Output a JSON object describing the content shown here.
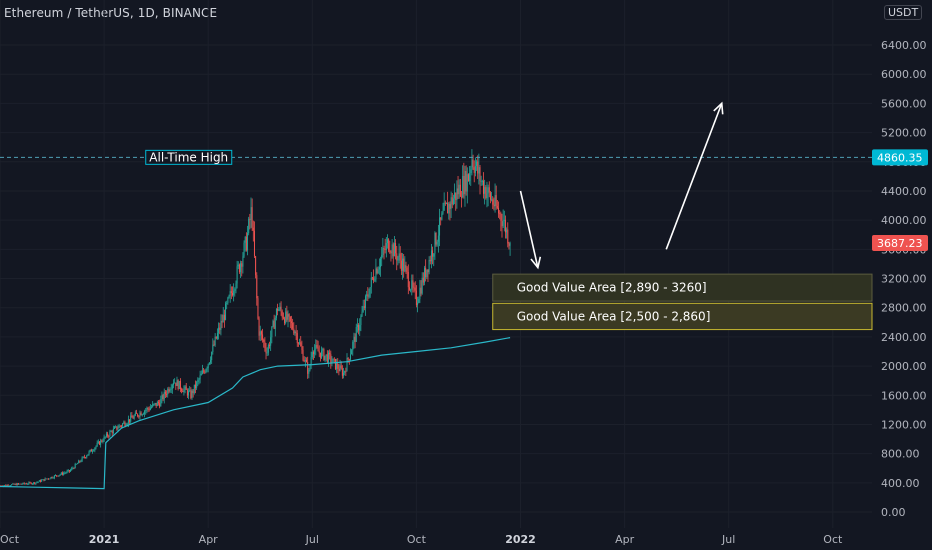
{
  "header": {
    "title": "Ethereum / TetherUS, 1D, BINANCE",
    "currency": "USDT"
  },
  "chart_data": {
    "type": "candlestick",
    "ylim": [
      0,
      6700
    ],
    "y_ticks": [
      {
        "value": 0,
        "label": "0.00"
      },
      {
        "value": 400,
        "label": "400.00"
      },
      {
        "value": 800,
        "label": "800.00"
      },
      {
        "value": 1200,
        "label": "1200.00"
      },
      {
        "value": 1600,
        "label": "1600.00"
      },
      {
        "value": 2000,
        "label": "2000.00"
      },
      {
        "value": 2400,
        "label": "2400.00"
      },
      {
        "value": 2800,
        "label": "2800.00"
      },
      {
        "value": 3200,
        "label": "3200.00"
      },
      {
        "value": 3600,
        "label": "3600.00"
      },
      {
        "value": 4000,
        "label": "4000.00"
      },
      {
        "value": 4400,
        "label": "4400.00"
      },
      {
        "value": 4800,
        "label": "4800.00"
      },
      {
        "value": 5200,
        "label": "5200.00"
      },
      {
        "value": 5600,
        "label": "5600.00"
      },
      {
        "value": 6000,
        "label": "6000.00"
      },
      {
        "value": 6400,
        "label": "6400.00"
      }
    ],
    "x_ticks": [
      {
        "month": 0,
        "label": "Oct",
        "bold": false
      },
      {
        "month": 3,
        "label": "2021",
        "bold": true
      },
      {
        "month": 6,
        "label": "Apr",
        "bold": false
      },
      {
        "month": 9,
        "label": "Jul",
        "bold": false
      },
      {
        "month": 12,
        "label": "Oct",
        "bold": false
      },
      {
        "month": 15,
        "label": "2022",
        "bold": true
      },
      {
        "month": 18,
        "label": "Apr",
        "bold": false
      },
      {
        "month": 21,
        "label": "Jul",
        "bold": false
      },
      {
        "month": 24,
        "label": "Oct",
        "bold": false
      }
    ],
    "price_path": [
      [
        0,
        360
      ],
      [
        1,
        400
      ],
      [
        2,
        560
      ],
      [
        3.2,
        1100
      ],
      [
        4,
        1350
      ],
      [
        4.6,
        1500
      ],
      [
        5,
        1800
      ],
      [
        5.5,
        1600
      ],
      [
        6,
        2050
      ],
      [
        6.6,
        2900
      ],
      [
        7.1,
        3700
      ],
      [
        7.25,
        4150
      ],
      [
        7.45,
        2500
      ],
      [
        7.7,
        2200
      ],
      [
        8,
        2800
      ],
      [
        8.5,
        2500
      ],
      [
        8.9,
        1900
      ],
      [
        9,
        2250
      ],
      [
        9.5,
        2100
      ],
      [
        9.9,
        1900
      ],
      [
        10.3,
        2500
      ],
      [
        10.8,
        3300
      ],
      [
        11.2,
        3700
      ],
      [
        11.6,
        3400
      ],
      [
        12,
        2900
      ],
      [
        12.4,
        3500
      ],
      [
        12.8,
        4100
      ],
      [
        13.2,
        4400
      ],
      [
        13.5,
        4600
      ],
      [
        13.6,
        4860
      ],
      [
        13.9,
        4500
      ],
      [
        14.2,
        4250
      ],
      [
        14.5,
        4000
      ],
      [
        14.7,
        3687
      ]
    ],
    "moving_average": [
      [
        0,
        350
      ],
      [
        1,
        340
      ],
      [
        2,
        330
      ],
      [
        3.0,
        320
      ],
      [
        3.05,
        950
      ],
      [
        3.5,
        1150
      ],
      [
        4,
        1250
      ],
      [
        5,
        1400
      ],
      [
        6,
        1500
      ],
      [
        6.7,
        1700
      ],
      [
        7,
        1850
      ],
      [
        7.5,
        1950
      ],
      [
        8,
        2000
      ],
      [
        9,
        2020
      ],
      [
        10,
        2060
      ],
      [
        11,
        2150
      ],
      [
        12,
        2200
      ],
      [
        13,
        2250
      ],
      [
        14,
        2330
      ],
      [
        14.7,
        2390
      ]
    ],
    "all_time_high": {
      "value": 4860.35,
      "label": "All-Time High"
    },
    "last_price": {
      "value": 3687.23,
      "label": "3687.23"
    },
    "zones": [
      {
        "label": "Good Value Area [2,890 - 3260]",
        "low": 2890,
        "high": 3260,
        "start_month": 14.2,
        "fill": "#2f3222",
        "border": "#5c5d3f"
      },
      {
        "label": "Good Value Area [2,500 - 2,860]",
        "low": 2500,
        "high": 2860,
        "start_month": 14.2,
        "fill": "#3b3a23",
        "border": "#c8b830"
      }
    ],
    "arrows": [
      {
        "from": [
          15.0,
          4400
        ],
        "to": [
          15.5,
          3350
        ]
      },
      {
        "from": [
          19.2,
          3600
        ],
        "to": [
          20.8,
          5600
        ]
      }
    ],
    "colors": {
      "background": "#131722",
      "up": "#26a69a",
      "down": "#ef5350",
      "ma": "#2ab8c9",
      "ath_line": "#4f9fb5",
      "ath_tag": "#00b8d4",
      "last_tag": "#ef5350",
      "arrow": "#ffffff"
    }
  }
}
